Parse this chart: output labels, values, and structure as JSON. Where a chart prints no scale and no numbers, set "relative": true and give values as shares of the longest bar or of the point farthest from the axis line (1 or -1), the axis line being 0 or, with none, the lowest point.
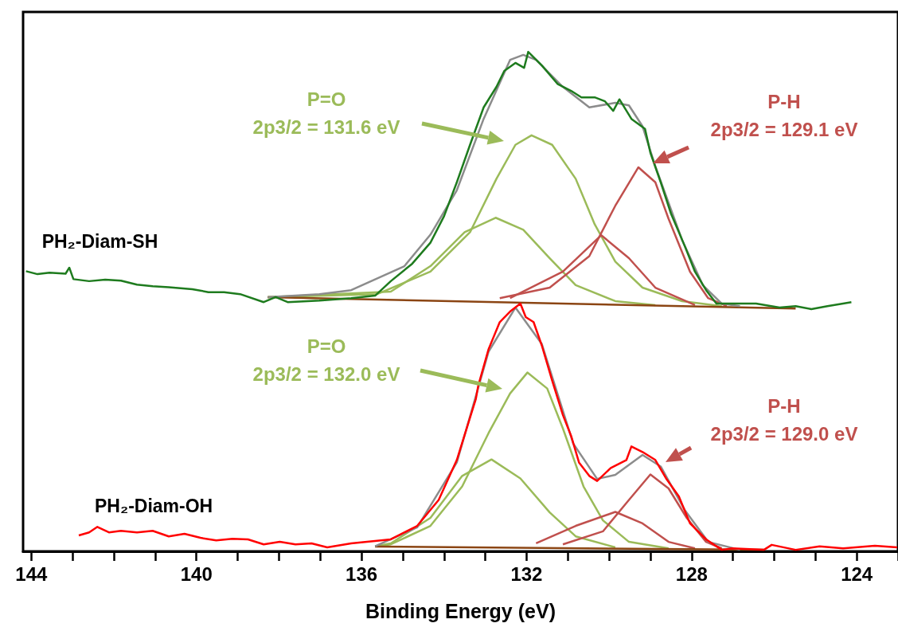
{
  "chart_data": {
    "type": "line",
    "relative": true,
    "xlabel": "Binding Energy (eV)",
    "xlim": [
      144.2,
      123
    ],
    "xticks": [
      144,
      {
        "value": 143,
        "label": null
      },
      {
        "value": 142,
        "label": null
      },
      {
        "value": 141,
        "label": null
      },
      140,
      {
        "value": 139,
        "label": null
      },
      {
        "value": 138,
        "label": null
      },
      {
        "value": 137,
        "label": null
      },
      136,
      {
        "value": 135,
        "label": null
      },
      {
        "value": 134,
        "label": null
      },
      {
        "value": 133,
        "label": null
      },
      132,
      {
        "value": 131,
        "label": null
      },
      {
        "value": 130,
        "label": null
      },
      {
        "value": 129,
        "label": null
      },
      128,
      {
        "value": 127,
        "label": null
      },
      {
        "value": 126,
        "label": null
      },
      {
        "value": 125,
        "label": null
      },
      124,
      {
        "value": 123,
        "label": null
      }
    ],
    "grid": false,
    "legend": false,
    "marker": "none",
    "series": [
      {
        "color": "#9bbb59",
        "x": [
          138.27,
          135.62,
          134.33,
          133.37,
          132.73,
          132.27,
          131.88,
          131.38,
          130.81,
          130.35,
          129.85,
          129.19,
          128.23,
          127.27
        ],
        "values": [
          0.509,
          0.515,
          0.56,
          0.639,
          0.746,
          0.814,
          0.833,
          0.814,
          0.746,
          0.655,
          0.58,
          0.528,
          0.501,
          0.491
        ]
      },
      {
        "color": "#9bbb59",
        "x": [
          138.27,
          135.29,
          134.33,
          133.5,
          132.75,
          132.08,
          131.44,
          130.81,
          129.85,
          128.88
        ],
        "values": [
          0.509,
          0.52,
          0.571,
          0.639,
          0.668,
          0.644,
          0.587,
          0.533,
          0.501,
          0.493
        ]
      },
      {
        "color": "#c0504d",
        "x": [
          132.65,
          131.44,
          130.48,
          129.85,
          129.29,
          128.88,
          128.56,
          128.04,
          127.6,
          127.15
        ],
        "values": [
          0.507,
          0.528,
          0.591,
          0.692,
          0.769,
          0.739,
          0.666,
          0.56,
          0.507,
          0.491
        ]
      },
      {
        "color": "#c0504d",
        "x": [
          132.4,
          131.12,
          130.19,
          129.52,
          128.88,
          127.92
        ],
        "values": [
          0.507,
          0.56,
          0.633,
          0.587,
          0.528,
          0.493
        ]
      },
      {
        "color": "#8b4513",
        "x": [
          138.27,
          125.48
        ],
        "values": [
          0.509,
          0.486
        ]
      },
      {
        "color": "#8c8c8c",
        "x": [
          138.27,
          137.02,
          136.25,
          134.96,
          134.33,
          133.69,
          133.04,
          132.4,
          132.08,
          131.77,
          131.12,
          130.48,
          129.85,
          129.52,
          129.19,
          128.88,
          128.23,
          127.73,
          127.27,
          126.83
        ],
        "values": [
          0.509,
          0.515,
          0.523,
          0.571,
          0.634,
          0.723,
          0.866,
          0.984,
          0.994,
          0.984,
          0.93,
          0.889,
          0.898,
          0.893,
          0.851,
          0.771,
          0.623,
          0.533,
          0.496,
          0.491
        ]
      },
      {
        "name": "PH₂-Diam-SH",
        "color": "#1e7b1e",
        "x": [
          144.13,
          143.85,
          143.56,
          143.17,
          143.08,
          142.98,
          142.6,
          142.21,
          141.83,
          141.44,
          141.06,
          140.67,
          140.1,
          139.71,
          139.33,
          138.94,
          138.37,
          138.08,
          137.79,
          137.02,
          136.25,
          135.67,
          135.29,
          134.77,
          134.33,
          134.0,
          133.69,
          133.37,
          133.04,
          132.73,
          132.54,
          132.27,
          132.06,
          131.96,
          131.63,
          131.25,
          130.92,
          130.67,
          130.35,
          130.1,
          129.9,
          129.75,
          129.46,
          129.13,
          129.0,
          128.75,
          128.5,
          128.17,
          127.92,
          127.65,
          127.4,
          126.44,
          125.87,
          125.48,
          125.1,
          124.71,
          124.33,
          124.13
        ],
        "values": [
          0.561,
          0.555,
          0.558,
          0.556,
          0.568,
          0.545,
          0.541,
          0.544,
          0.542,
          0.534,
          0.531,
          0.529,
          0.525,
          0.519,
          0.519,
          0.515,
          0.499,
          0.509,
          0.499,
          0.502,
          0.507,
          0.512,
          0.541,
          0.576,
          0.618,
          0.671,
          0.739,
          0.814,
          0.889,
          0.93,
          0.962,
          0.978,
          0.968,
          1.0,
          0.973,
          0.936,
          0.922,
          0.909,
          0.909,
          0.901,
          0.882,
          0.905,
          0.866,
          0.846,
          0.798,
          0.739,
          0.676,
          0.612,
          0.56,
          0.523,
          0.496,
          0.496,
          0.488,
          0.491,
          0.485,
          0.491,
          0.496,
          0.499
        ]
      },
      {
        "color": "#9bbb59",
        "x": [
          135.67,
          135.29,
          134.33,
          133.56,
          132.92,
          132.4,
          131.98,
          131.5,
          131.12,
          130.62,
          130.15,
          129.52,
          128.56
        ],
        "values": [
          0.01,
          0.014,
          0.051,
          0.13,
          0.237,
          0.316,
          0.358,
          0.326,
          0.246,
          0.13,
          0.062,
          0.019,
          0.006
        ]
      },
      {
        "color": "#9bbb59",
        "x": [
          135.67,
          135.29,
          134.33,
          133.56,
          132.85,
          132.15,
          131.44,
          130.81,
          129.85
        ],
        "values": [
          0.01,
          0.016,
          0.067,
          0.151,
          0.184,
          0.146,
          0.078,
          0.03,
          0.008
        ]
      },
      {
        "color": "#c0504d",
        "x": [
          131.12,
          130.15,
          129.52,
          129.0,
          128.56,
          128.12,
          127.65,
          127.27
        ],
        "values": [
          0.014,
          0.04,
          0.103,
          0.154,
          0.126,
          0.067,
          0.019,
          0.006
        ]
      },
      {
        "color": "#c0504d",
        "x": [
          131.77,
          130.81,
          129.85,
          129.19,
          128.56,
          127.92
        ],
        "values": [
          0.016,
          0.051,
          0.079,
          0.056,
          0.019,
          0.006
        ]
      },
      {
        "color": "#8b4513",
        "x": [
          135.67,
          126.25
        ],
        "values": [
          0.0095,
          0.003
        ]
      },
      {
        "color": "#8c8c8c",
        "x": [
          135.67,
          134.65,
          133.69,
          132.92,
          132.27,
          131.63,
          130.87,
          130.29,
          129.85,
          129.19,
          128.75,
          128.17,
          127.6,
          126.83
        ],
        "values": [
          0.01,
          0.048,
          0.178,
          0.4,
          0.488,
          0.415,
          0.216,
          0.145,
          0.153,
          0.193,
          0.17,
          0.083,
          0.019,
          0.003
        ]
      },
      {
        "name": "PH₂-Diam-OH",
        "color": "#ff0000",
        "x": [
          142.85,
          142.6,
          142.4,
          142.12,
          141.83,
          141.44,
          141.06,
          140.67,
          140.29,
          139.9,
          139.52,
          139.13,
          138.75,
          138.37,
          137.98,
          137.6,
          137.21,
          136.83,
          136.25,
          135.29,
          134.65,
          134.13,
          133.69,
          133.23,
          133.17,
          132.92,
          132.65,
          132.4,
          132.15,
          132.02,
          131.83,
          131.63,
          131.38,
          131.12,
          130.92,
          130.73,
          130.48,
          130.29,
          129.96,
          129.58,
          129.46,
          129.19,
          128.88,
          128.62,
          128.31,
          128.04,
          127.65,
          127.27,
          127.02,
          126.25,
          126.06,
          125.48,
          124.9,
          124.33,
          123.56,
          123.02
        ],
        "values": [
          0.032,
          0.038,
          0.049,
          0.038,
          0.041,
          0.038,
          0.041,
          0.03,
          0.035,
          0.027,
          0.022,
          0.025,
          0.024,
          0.014,
          0.019,
          0.014,
          0.016,
          0.008,
          0.016,
          0.024,
          0.051,
          0.103,
          0.183,
          0.305,
          0.332,
          0.405,
          0.459,
          0.48,
          0.496,
          0.469,
          0.459,
          0.412,
          0.342,
          0.273,
          0.231,
          0.178,
          0.151,
          0.141,
          0.167,
          0.183,
          0.21,
          0.199,
          0.183,
          0.146,
          0.11,
          0.056,
          0.024,
          0.003,
          0.006,
          0.003,
          0.013,
          0.003,
          0.01,
          0.006,
          0.011,
          0.008
        ]
      }
    ],
    "annotations": [
      "P=O\n2p3/2 = 131.6 eV",
      "P-H\n2p3/2 = 129.1 eV",
      "P=O\n2p3/2 = 132.0 eV",
      "P-H\n2p3/2 = 129.0 eV"
    ]
  }
}
